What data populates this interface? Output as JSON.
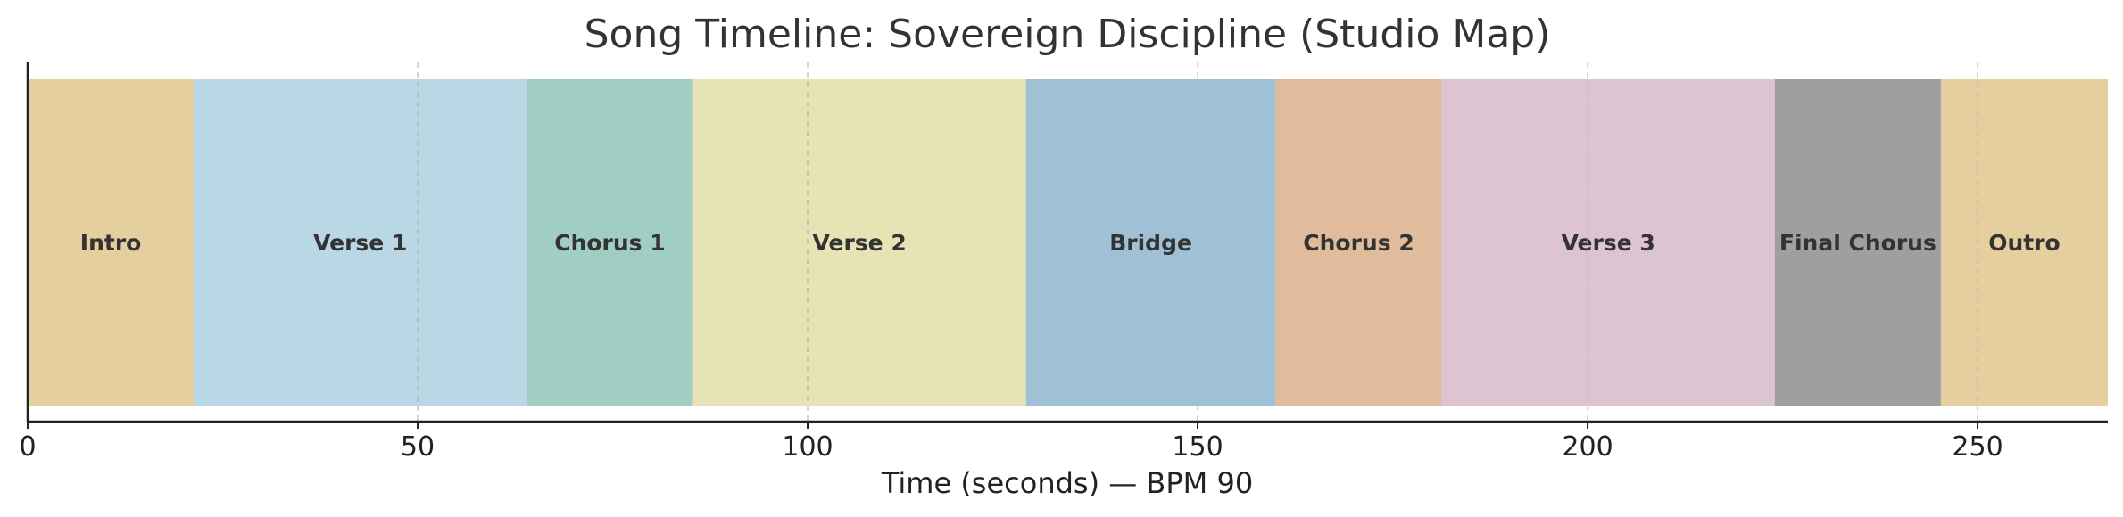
{
  "chart_data": {
    "type": "bar",
    "orientation": "horizontal-timeline",
    "title": "Song Timeline: Sovereign Discipline (Studio Map)",
    "xlabel": "Time (seconds) — BPM 90",
    "ylabel": "",
    "xlim": [
      0,
      266.7
    ],
    "xticks": [
      0,
      50,
      100,
      150,
      200,
      250
    ],
    "grid": "vertical dashed",
    "segments": [
      {
        "label": "Intro",
        "start": 0,
        "end": 21.3,
        "color": "#e5cf9e"
      },
      {
        "label": "Verse 1",
        "start": 21.3,
        "end": 64.0,
        "color": "#bad7e6"
      },
      {
        "label": "Chorus 1",
        "start": 64.0,
        "end": 85.3,
        "color": "#a0cec3"
      },
      {
        "label": "Verse 2",
        "start": 85.3,
        "end": 128.0,
        "color": "#e8e3b4"
      },
      {
        "label": "Bridge",
        "start": 128.0,
        "end": 160.0,
        "color": "#a0c1d5"
      },
      {
        "label": "Chorus 2",
        "start": 160.0,
        "end": 181.3,
        "color": "#e0bb9c"
      },
      {
        "label": "Verse 3",
        "start": 181.3,
        "end": 224.0,
        "color": "#dcc4d2"
      },
      {
        "label": "Final Chorus",
        "start": 224.0,
        "end": 245.3,
        "color": "#9f9f9f"
      },
      {
        "label": "Outro",
        "start": 245.3,
        "end": 266.7,
        "color": "#e5cf9e"
      }
    ]
  }
}
